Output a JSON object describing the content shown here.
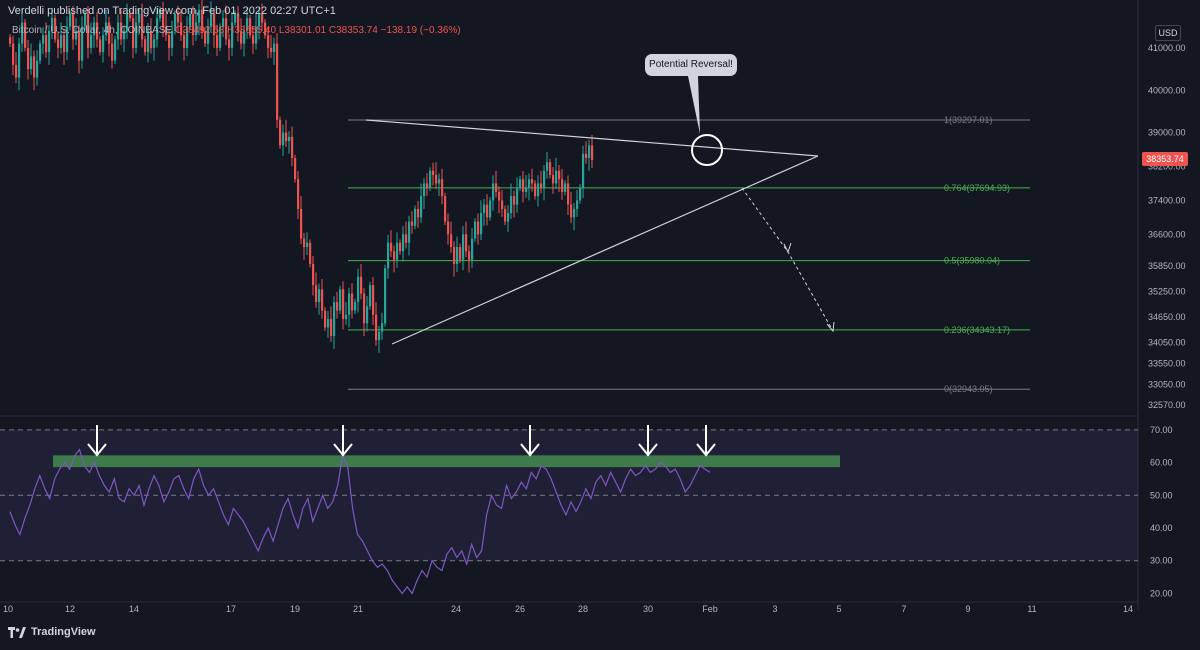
{
  "header": {
    "published": "Verdelli published on TradingView.com, Feb 01, 2022 02:27 UTC+1",
    "symbol": "Bitcoin / U.S. Dollar, 4h, COINBASE",
    "ohlc": "O38492.53 H38655.40 L38301.01 C38353.74 −138.19 (−0.36%)"
  },
  "currency_button": "USD",
  "last_price_label": "38353.74",
  "callout": "Potential Reversal!",
  "brand": "TradingView",
  "colors": {
    "background": "#131722",
    "up": "#26a69a",
    "down": "#ef5350",
    "fib_line": "#4caf50",
    "rsi_line": "#7e57c2",
    "rsi_band": "#7e57c2",
    "resistance_bar": "#3f7a4a"
  },
  "chart_data": [
    {
      "type": "candlestick",
      "x_tick_labels": [
        "10",
        "12",
        "14",
        "17",
        "19",
        "21",
        "24",
        "26",
        "28",
        "30",
        "Feb",
        "3",
        "5",
        "7",
        "9",
        "11",
        "14"
      ],
      "y_tick_labels": [
        "41000.00",
        "40000.00",
        "39000.00",
        "38200.00",
        "37400.00",
        "36600.00",
        "35850.00",
        "35250.00",
        "34650.00",
        "34050.00",
        "33550.00",
        "33050.00",
        "32570.00"
      ],
      "ylim": [
        32500,
        41800
      ],
      "close_series": [
        41100,
        40600,
        40300,
        41100,
        41600,
        41000,
        40500,
        40800,
        40300,
        40700,
        41100,
        41300,
        40900,
        41400,
        41700,
        41200,
        41000,
        41300,
        40900,
        41500,
        41800,
        41200,
        41400,
        40700,
        41500,
        41800,
        41000,
        41300,
        41600,
        41200,
        40900,
        41300,
        41600,
        41100,
        40700,
        41200,
        41600,
        41200,
        41400,
        41800,
        41700,
        41000,
        41600,
        41800,
        41200,
        40900,
        41400,
        41000,
        41200,
        41700,
        41900,
        41500,
        41300,
        41000,
        41400,
        41800,
        41600,
        41300,
        41000,
        41500,
        41800,
        41300,
        41600,
        41900,
        41400,
        41100,
        41500,
        41800,
        41300,
        41000,
        41500,
        41700,
        41200,
        41000,
        41600,
        41800,
        41400,
        41100,
        41400,
        41700,
        41300,
        41100,
        41500,
        41800,
        41600,
        41300,
        41000,
        40900,
        41100,
        39300,
        38700,
        39000,
        38800,
        38900,
        38400,
        37900,
        37200,
        36500,
        36300,
        36400,
        35900,
        35400,
        35000,
        35300,
        34800,
        34400,
        34600,
        34200,
        35000,
        34800,
        35300,
        34600,
        34700,
        35200,
        34800,
        35000,
        35600,
        35200,
        34500,
        34900,
        35400,
        34700,
        34100,
        34300,
        34500,
        35800,
        36400,
        36200,
        36000,
        36400,
        36200,
        36600,
        36400,
        36900,
        36800,
        37200,
        37000,
        37500,
        37800,
        37700,
        38100,
        38000,
        37800,
        37900,
        37500,
        36900,
        36600,
        36300,
        35900,
        36300,
        36000,
        36600,
        36200,
        36000,
        36500,
        36900,
        36600,
        37100,
        37300,
        37000,
        37400,
        37800,
        37600,
        37400,
        37200,
        36900,
        37100,
        37500,
        37300,
        37700,
        37900,
        37600,
        37700,
        37900,
        37800,
        37500,
        37800,
        37700,
        38100,
        38300,
        38000,
        37800,
        38100,
        37900,
        37600,
        37800,
        37300,
        37000,
        37200,
        37400,
        37700,
        38500,
        38400,
        38700,
        38353.74
      ],
      "annotations": {
        "fib_levels": [
          {
            "label": "1(39297.01)",
            "value": 39297.01
          },
          {
            "label": "0.764(37694.93)",
            "value": 37694.93
          },
          {
            "label": "0.5(35980.04)",
            "value": 35980.04
          },
          {
            "label": "0.236(34343.17)",
            "value": 34343.17
          },
          {
            "label": "0(32943.05)",
            "value": 32943.05
          }
        ],
        "pattern": "symmetrical-triangle",
        "projection": "dashed-arrow-down"
      }
    },
    {
      "type": "line",
      "indicator": "RSI",
      "y_tick_labels": [
        "70.00",
        "60.00",
        "50.00",
        "40.00",
        "30.00",
        "20.00"
      ],
      "ylim": [
        18,
        73
      ],
      "band": [
        30,
        70
      ],
      "midline": 50,
      "resistance_zone": [
        58.6,
        62.2
      ],
      "values": [
        45,
        41,
        38,
        43,
        47,
        52,
        56,
        52,
        49,
        55,
        58,
        60,
        58,
        62,
        64,
        59,
        57,
        60,
        56,
        53,
        51,
        55,
        49,
        48,
        52,
        50,
        53,
        47,
        52,
        56,
        53,
        48,
        51,
        55,
        56,
        52,
        49,
        55,
        58,
        53,
        50,
        52,
        48,
        44,
        41,
        46,
        44,
        42,
        39,
        36,
        33,
        37,
        40,
        36,
        41,
        46,
        49,
        44,
        40,
        46,
        49,
        42,
        46,
        50,
        46,
        48,
        53,
        62,
        59,
        46,
        38,
        36,
        33,
        30,
        28,
        29,
        27,
        24,
        22,
        20,
        22,
        20,
        24,
        27,
        25,
        30,
        28,
        27,
        32,
        34,
        31,
        33,
        29,
        35,
        31,
        33,
        44,
        50,
        47,
        46,
        53,
        49,
        51,
        54,
        52,
        57,
        55,
        59,
        58,
        55,
        51,
        47,
        44,
        48,
        45,
        48,
        52,
        49,
        54,
        56,
        53,
        57,
        54,
        51,
        55,
        58,
        56,
        57,
        59,
        57,
        58,
        60,
        59,
        57,
        58,
        55,
        51,
        53,
        56,
        59,
        58,
        57
      ]
    }
  ]
}
